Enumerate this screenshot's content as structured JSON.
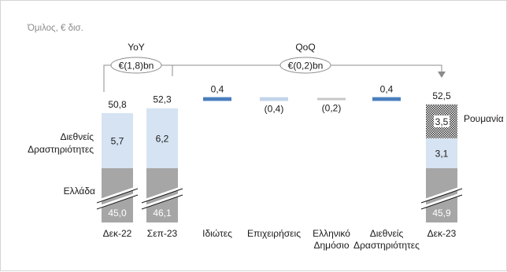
{
  "chart_data": {
    "type": "bar",
    "subtitle": "Όμιλος, € δισ.",
    "categories": [
      "Δεκ-22",
      "Σεπ-23",
      "Ιδιώτες",
      "Επιχειρήσεις",
      "Ελληνικό Δημόσιο",
      "Διεθνείς Δραστηριότητες",
      "Δεκ-23"
    ],
    "category_lines": [
      [
        "Δεκ-22"
      ],
      [
        "Σεπ-23"
      ],
      [
        "Ιδιώτες"
      ],
      [
        "Επιχειρήσεις"
      ],
      [
        "Ελληνικό",
        "Δημόσιο"
      ],
      [
        "Διεθνείς",
        "Δραστηριότητες"
      ],
      [
        "Δεκ-23"
      ]
    ],
    "totals": [
      {
        "category": "Δεκ-22",
        "value": 50.8,
        "label": "50,8"
      },
      {
        "category": "Σεπ-23",
        "value": 52.3,
        "label": "52,3"
      },
      {
        "category": "Δεκ-23",
        "value": 52.5,
        "label": "52,5"
      }
    ],
    "stacked_series": [
      {
        "name": "Ελλάδα",
        "color": "#a6a6a6",
        "values": [
          45.0,
          46.1,
          null,
          null,
          null,
          null,
          45.9
        ],
        "labels": [
          "45,0",
          "46,1",
          "",
          "",
          "",
          "",
          "45,9"
        ]
      },
      {
        "name": "Διεθνείς Δραστηριότητες",
        "color": "#d6e3f2",
        "values": [
          5.7,
          6.2,
          null,
          null,
          null,
          null,
          3.1
        ],
        "labels": [
          "5,7",
          "6,2",
          "",
          "",
          "",
          "",
          "3,1"
        ]
      },
      {
        "name": "Ρουμανία",
        "color": "#3a3a3a",
        "pattern": "checker",
        "values": [
          null,
          null,
          null,
          null,
          null,
          null,
          3.5
        ],
        "labels": [
          "",
          "",
          "",
          "",
          "",
          "",
          "3,5"
        ]
      }
    ],
    "waterfall": [
      {
        "category": "Ιδιώτες",
        "change": 0.4,
        "label": "0,4",
        "color": "#4a7fbf"
      },
      {
        "category": "Επιχειρήσεις",
        "change": -0.4,
        "label": "(0,4)",
        "color": "#c2d4ea"
      },
      {
        "category": "Ελληνικό Δημόσιο",
        "change": -0.2,
        "label": "(0,2)",
        "color": "#c8c8c8"
      },
      {
        "category": "Διεθνείς Δραστηριότητες",
        "change": 0.4,
        "label": "0,4",
        "color": "#4a7fbf"
      }
    ],
    "series_labels": [
      {
        "text_lines": [
          "Διεθνείς",
          "Δραστηριότητες"
        ],
        "series": "Διεθνείς Δραστηριότητες"
      },
      {
        "text_lines": [
          "Ελλάδα"
        ],
        "series": "Ελλάδα"
      },
      {
        "text_lines": [
          "Ρουμανία"
        ],
        "series": "Ρουμανία"
      }
    ],
    "annotations": {
      "yoy": {
        "title": "YoY",
        "value": "€(1,8)bn"
      },
      "qoq": {
        "title": "QoQ",
        "value": "€(0,2)bn"
      }
    },
    "axis_break": true,
    "grid": false
  }
}
